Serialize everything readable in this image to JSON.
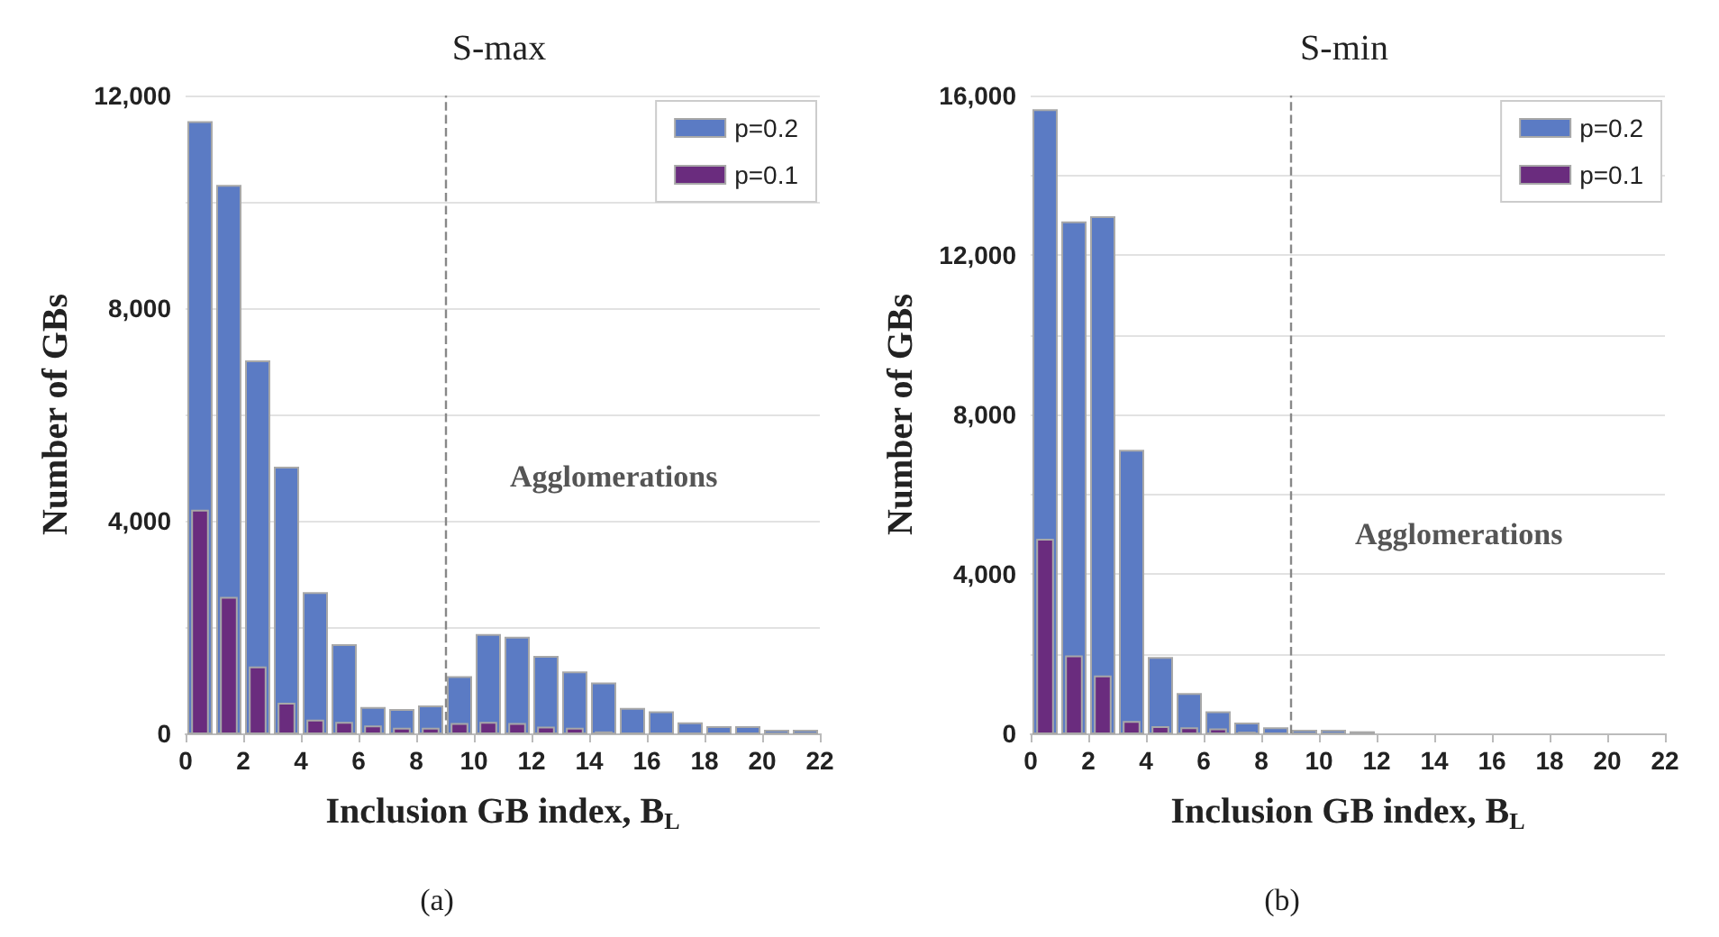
{
  "chart_data": [
    {
      "type": "histogram",
      "title": "S-max",
      "xlabel": "Inclusion GB index, B$_{L}$",
      "ylabel": "Number of GBs",
      "bins": [
        0,
        1,
        2,
        3,
        4,
        5,
        6,
        7,
        8,
        9,
        10,
        11,
        12,
        13,
        14,
        15,
        16,
        17,
        18,
        19,
        20,
        21,
        22
      ],
      "series": [
        {
          "name": "p=0.2",
          "color": "#5b7bc4",
          "values": [
            11500,
            10300,
            7000,
            5000,
            2640,
            1660,
            480,
            440,
            510,
            1060,
            1850,
            1800,
            1440,
            1150,
            940,
            460,
            400,
            190,
            120,
            120,
            50,
            50
          ]
        },
        {
          "name": "p=0.1",
          "color": "#6a2c7e",
          "values": [
            4190,
            2550,
            1240,
            560,
            240,
            200,
            130,
            90,
            90,
            180,
            200,
            180,
            110,
            90,
            20,
            0,
            0,
            0,
            0,
            0,
            0,
            0
          ]
        }
      ],
      "xlim": [
        0,
        22
      ],
      "xticks": [
        0,
        2,
        4,
        6,
        8,
        10,
        12,
        14,
        16,
        18,
        20,
        22
      ],
      "ylim": [
        0,
        12000
      ],
      "yticks": [
        0,
        {
          "value": 2000,
          "label": null
        },
        {
          "value": 4000,
          "label": "4,000"
        },
        {
          "value": 6000,
          "label": null
        },
        {
          "value": 8000,
          "label": "8,000"
        },
        {
          "value": 10000,
          "label": null
        },
        {
          "value": 12000,
          "label": "12,000"
        }
      ],
      "grid": "y",
      "legend": "top right",
      "ref_lines": [
        {
          "axis": "x",
          "value": 9,
          "color": "#888888",
          "line_style": "dashed"
        }
      ],
      "annotations": [
        "Agglomerations",
        "(a)"
      ]
    },
    {
      "type": "histogram",
      "title": "S-min",
      "xlabel": "Inclusion GB index, B$_{L}$",
      "ylabel": "Number of GBs",
      "bins": [
        0,
        1,
        2,
        3,
        4,
        5,
        6,
        7,
        8,
        9,
        10,
        11,
        12,
        13,
        14,
        15,
        16,
        17,
        18,
        19,
        20,
        21,
        22
      ],
      "series": [
        {
          "name": "p=0.2",
          "color": "#5b7bc4",
          "values": [
            15630,
            12820,
            12950,
            7090,
            1890,
            990,
            530,
            250,
            130,
            70,
            70,
            30,
            0,
            0,
            0,
            0,
            0,
            0,
            0,
            0,
            0,
            0
          ]
        },
        {
          "name": "p=0.1",
          "color": "#6a2c7e",
          "values": [
            4860,
            1930,
            1430,
            290,
            160,
            130,
            100,
            20,
            0,
            0,
            0,
            0,
            0,
            0,
            0,
            0,
            0,
            0,
            0,
            0,
            0,
            0
          ]
        }
      ],
      "xlim": [
        0,
        22
      ],
      "xticks": [
        0,
        2,
        4,
        6,
        8,
        10,
        12,
        14,
        16,
        18,
        20,
        22
      ],
      "ylim": [
        0,
        16000
      ],
      "yticks": [
        0,
        {
          "value": 2000,
          "label": null
        },
        {
          "value": 4000,
          "label": "4,000"
        },
        {
          "value": 6000,
          "label": null
        },
        {
          "value": 8000,
          "label": "8,000"
        },
        {
          "value": 10000,
          "label": null
        },
        {
          "value": 12000,
          "label": "12,000"
        },
        {
          "value": 14000,
          "label": null
        },
        {
          "value": 16000,
          "label": "16,000"
        }
      ],
      "grid": "y",
      "legend": "top right",
      "ref_lines": [
        {
          "axis": "x",
          "value": 9,
          "color": "#888888",
          "line_style": "dashed"
        }
      ],
      "annotations": [
        "Agglomerations",
        "(b)"
      ]
    }
  ]
}
